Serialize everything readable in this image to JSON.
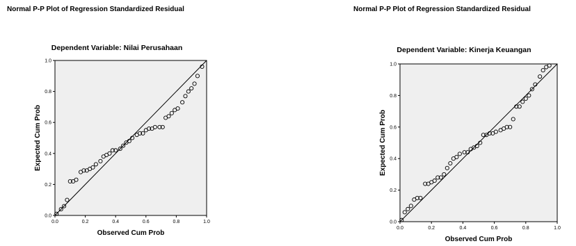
{
  "chart_data": [
    {
      "type": "scatter",
      "title": "Normal P-P Plot of Regression Standardized Residual",
      "subtitle": "Dependent Variable: Nilai Perusahaan",
      "xlabel": "Observed Cum Prob",
      "ylabel": "Expected Cum Prob",
      "xlim": [
        0,
        1
      ],
      "ylim": [
        0,
        1
      ],
      "xticks": [
        "0.0",
        "0.2",
        "0.4",
        "0.6",
        "0.8",
        "1.0"
      ],
      "yticks": [
        "0.0",
        "0.2",
        "0.4",
        "0.6",
        "0.8",
        "1.0"
      ],
      "grid": false,
      "reference_line": "diagonal",
      "colors": {
        "plot_background": "#efefef",
        "marker": "#000000",
        "line": "#000000"
      },
      "points": [
        [
          0.01,
          0.01
        ],
        [
          0.04,
          0.04
        ],
        [
          0.06,
          0.06
        ],
        [
          0.08,
          0.1
        ],
        [
          0.1,
          0.22
        ],
        [
          0.12,
          0.22
        ],
        [
          0.14,
          0.23
        ],
        [
          0.17,
          0.28
        ],
        [
          0.19,
          0.29
        ],
        [
          0.21,
          0.29
        ],
        [
          0.23,
          0.3
        ],
        [
          0.25,
          0.31
        ],
        [
          0.27,
          0.33
        ],
        [
          0.3,
          0.35
        ],
        [
          0.32,
          0.38
        ],
        [
          0.34,
          0.39
        ],
        [
          0.36,
          0.4
        ],
        [
          0.38,
          0.42
        ],
        [
          0.4,
          0.42
        ],
        [
          0.43,
          0.43
        ],
        [
          0.45,
          0.45
        ],
        [
          0.47,
          0.47
        ],
        [
          0.49,
          0.48
        ],
        [
          0.51,
          0.5
        ],
        [
          0.54,
          0.52
        ],
        [
          0.56,
          0.53
        ],
        [
          0.58,
          0.53
        ],
        [
          0.6,
          0.55
        ],
        [
          0.62,
          0.56
        ],
        [
          0.64,
          0.56
        ],
        [
          0.66,
          0.57
        ],
        [
          0.69,
          0.57
        ],
        [
          0.71,
          0.57
        ],
        [
          0.73,
          0.63
        ],
        [
          0.75,
          0.64
        ],
        [
          0.77,
          0.66
        ],
        [
          0.79,
          0.68
        ],
        [
          0.81,
          0.69
        ],
        [
          0.84,
          0.73
        ],
        [
          0.86,
          0.77
        ],
        [
          0.88,
          0.8
        ],
        [
          0.9,
          0.82
        ],
        [
          0.92,
          0.85
        ],
        [
          0.94,
          0.9
        ],
        [
          0.97,
          0.96
        ]
      ]
    },
    {
      "type": "scatter",
      "title": "Normal P-P Plot of Regression Standardized Residual",
      "subtitle": "Dependent Variable: Kinerja Keuangan",
      "xlabel": "Observed Cum Prob",
      "ylabel": "Expected Cum Prob",
      "xlim": [
        0,
        1
      ],
      "ylim": [
        0,
        1
      ],
      "xticks": [
        "0.0",
        "0.2",
        "0.4",
        "0.6",
        "0.8",
        "1.0"
      ],
      "yticks": [
        "0.0",
        "0.2",
        "0.4",
        "0.6",
        "0.8",
        "1.0"
      ],
      "grid": false,
      "reference_line": "diagonal",
      "colors": {
        "plot_background": "#efefef",
        "marker": "#000000",
        "line": "#000000"
      },
      "points": [
        [
          0.01,
          0.01
        ],
        [
          0.03,
          0.06
        ],
        [
          0.05,
          0.08
        ],
        [
          0.07,
          0.1
        ],
        [
          0.09,
          0.14
        ],
        [
          0.11,
          0.15
        ],
        [
          0.13,
          0.15
        ],
        [
          0.16,
          0.24
        ],
        [
          0.18,
          0.24
        ],
        [
          0.2,
          0.25
        ],
        [
          0.22,
          0.26
        ],
        [
          0.24,
          0.28
        ],
        [
          0.26,
          0.28
        ],
        [
          0.28,
          0.3
        ],
        [
          0.3,
          0.34
        ],
        [
          0.32,
          0.37
        ],
        [
          0.34,
          0.4
        ],
        [
          0.36,
          0.41
        ],
        [
          0.38,
          0.43
        ],
        [
          0.41,
          0.44
        ],
        [
          0.43,
          0.44
        ],
        [
          0.45,
          0.46
        ],
        [
          0.47,
          0.47
        ],
        [
          0.49,
          0.48
        ],
        [
          0.51,
          0.5
        ],
        [
          0.53,
          0.55
        ],
        [
          0.55,
          0.55
        ],
        [
          0.57,
          0.56
        ],
        [
          0.59,
          0.56
        ],
        [
          0.61,
          0.57
        ],
        [
          0.64,
          0.58
        ],
        [
          0.66,
          0.59
        ],
        [
          0.68,
          0.6
        ],
        [
          0.7,
          0.6
        ],
        [
          0.72,
          0.65
        ],
        [
          0.74,
          0.73
        ],
        [
          0.76,
          0.73
        ],
        [
          0.78,
          0.76
        ],
        [
          0.8,
          0.78
        ],
        [
          0.82,
          0.8
        ],
        [
          0.84,
          0.84
        ],
        [
          0.86,
          0.87
        ],
        [
          0.89,
          0.92
        ],
        [
          0.91,
          0.96
        ],
        [
          0.93,
          0.98
        ],
        [
          0.95,
          0.99
        ]
      ]
    }
  ]
}
